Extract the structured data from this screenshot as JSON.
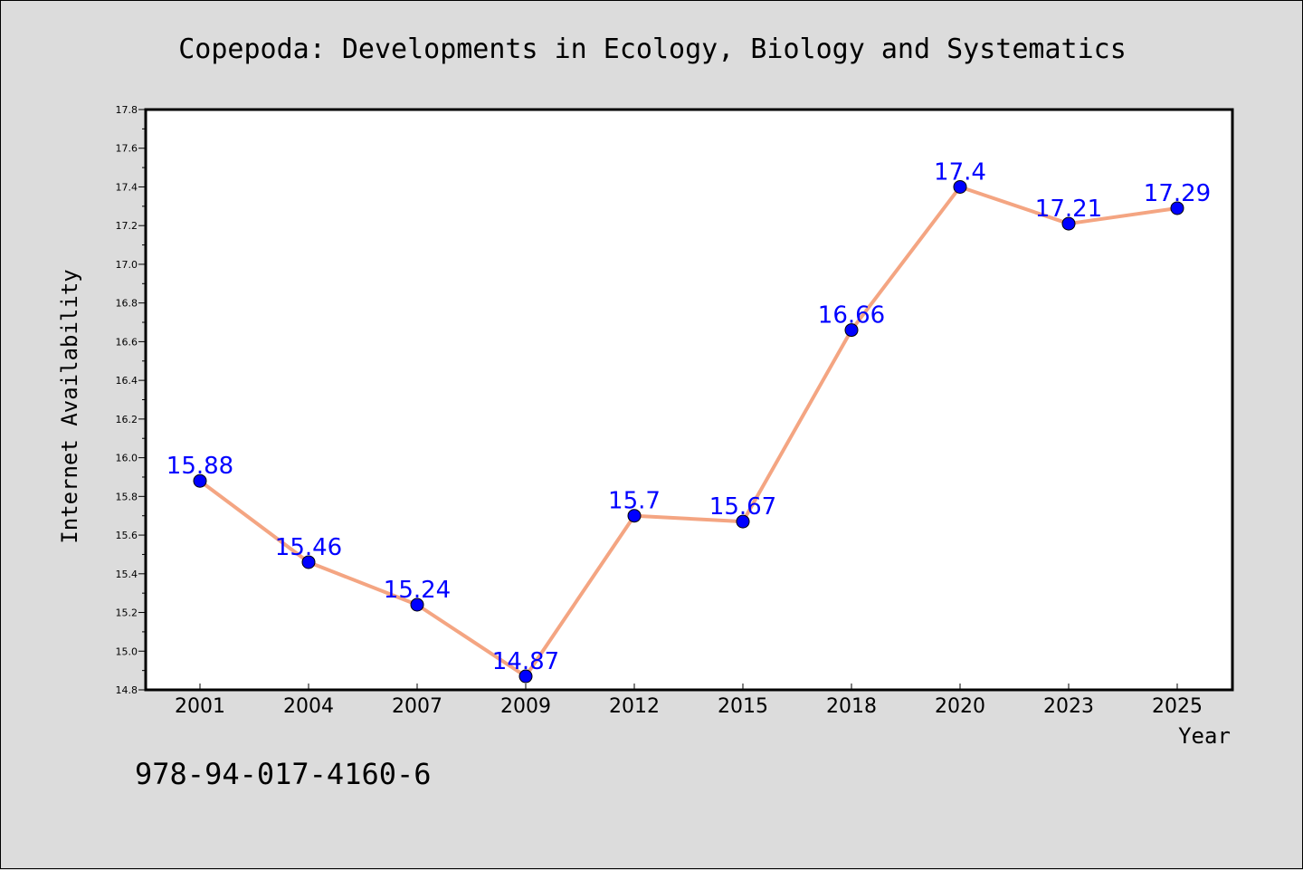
{
  "chart_data": {
    "type": "line",
    "title": "Copepoda: Developments in Ecology, Biology and Systematics",
    "xlabel": "Year",
    "ylabel": "Internet Availability",
    "categories": [
      "2001",
      "2004",
      "2007",
      "2009",
      "2012",
      "2015",
      "2018",
      "2020",
      "2023",
      "2025"
    ],
    "values": [
      15.88,
      15.46,
      15.24,
      14.87,
      15.7,
      15.67,
      16.66,
      17.4,
      17.21,
      17.29
    ],
    "data_labels": [
      "15.88",
      "15.46",
      "15.24",
      "14.87",
      "15.7",
      "15.67",
      "16.66",
      "17.4",
      "17.21",
      "17.29"
    ],
    "ylim": [
      14.8,
      17.8
    ],
    "yticks": [
      "14.8",
      "15.0",
      "15.2",
      "15.4",
      "15.6",
      "15.8",
      "16.0",
      "16.2",
      "16.4",
      "16.6",
      "16.8",
      "17.0",
      "17.2",
      "17.4",
      "17.6",
      "17.8"
    ],
    "grid": false,
    "legend": "none",
    "colors": {
      "line": "#f4a582",
      "marker": "#0000ff",
      "label": "#0000ff",
      "background": "#dcdcdc",
      "plot_background": "#ffffff"
    }
  },
  "footer": {
    "isbn": "978-94-017-4160-6"
  }
}
